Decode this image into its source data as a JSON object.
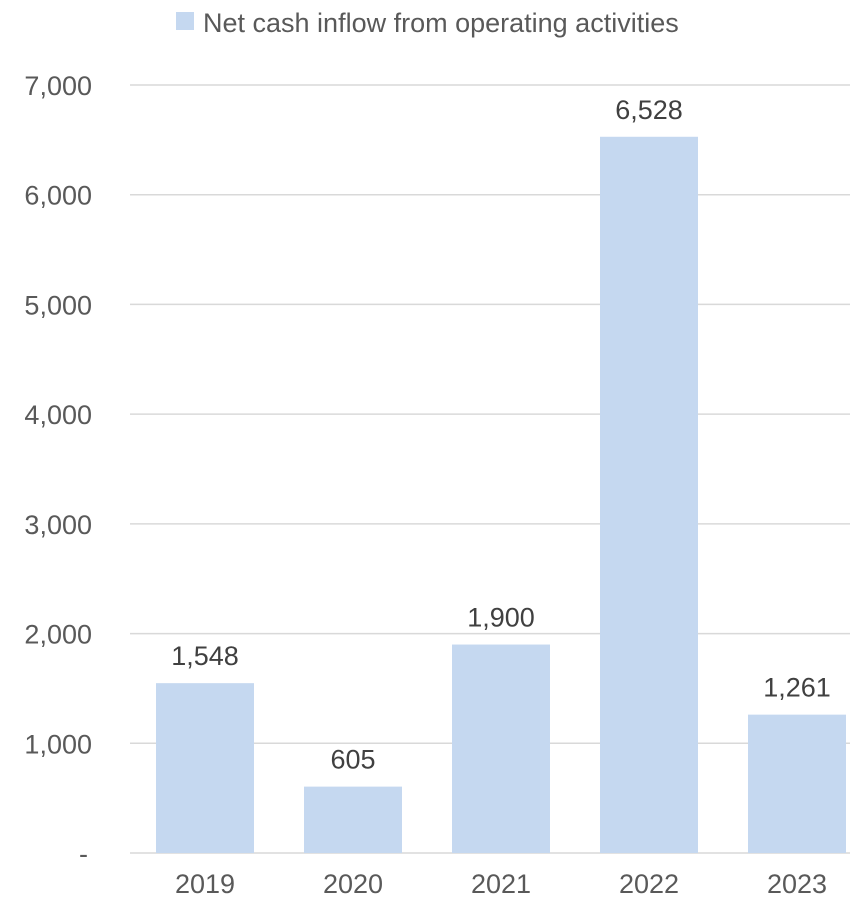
{
  "chart_data": {
    "type": "bar",
    "categories": [
      "2019",
      "2020",
      "2021",
      "2022",
      "2023"
    ],
    "series": [
      {
        "name": "Net cash inflow from operating activities",
        "values": [
          1548,
          605,
          1900,
          6528,
          1261
        ],
        "color": "#c5d8f0"
      }
    ],
    "data_labels": [
      "1,548",
      "605",
      "1,900",
      "6,528",
      "1,261"
    ],
    "y_ticks": [
      0,
      1000,
      2000,
      3000,
      4000,
      5000,
      6000,
      7000
    ],
    "y_tick_labels": [
      "-",
      "1,000",
      "2,000",
      "3,000",
      "4,000",
      "5,000",
      "6,000",
      "7,000"
    ],
    "ylim": [
      0,
      7000
    ],
    "grid": true,
    "legend_position": "top",
    "title": "",
    "xlabel": "",
    "ylabel": ""
  }
}
